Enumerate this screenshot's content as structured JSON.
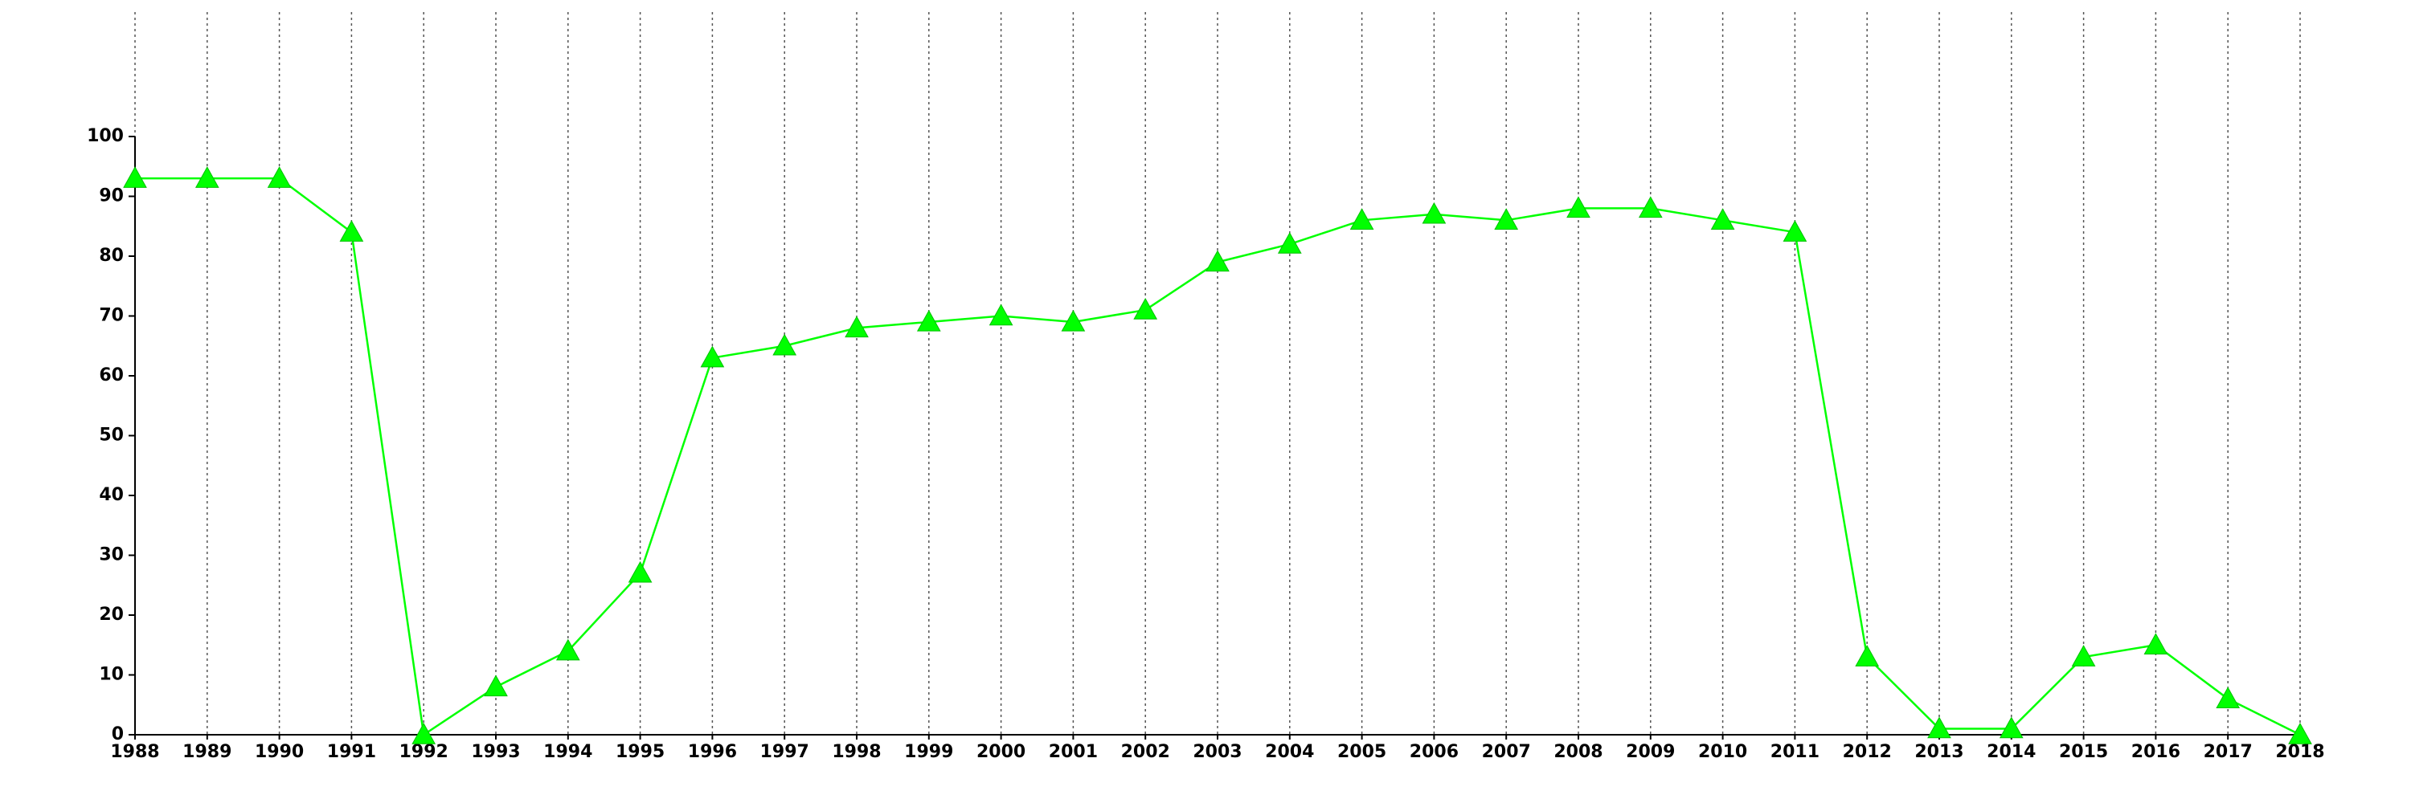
{
  "chart_data": {
    "type": "line",
    "x": [
      1988,
      1989,
      1990,
      1991,
      1992,
      1993,
      1994,
      1995,
      1996,
      1997,
      1998,
      1999,
      2000,
      2001,
      2002,
      2003,
      2004,
      2005,
      2006,
      2007,
      2008,
      2009,
      2010,
      2011,
      2012,
      2013,
      2014,
      2015,
      2016,
      2017,
      2018
    ],
    "values": [
      93,
      93,
      93,
      84,
      0,
      8,
      14,
      27,
      63,
      65,
      68,
      69,
      70,
      69,
      71,
      79,
      82,
      86,
      87,
      86,
      88,
      88,
      86,
      84,
      13,
      1,
      1,
      13,
      15,
      6,
      0
    ],
    "color": "#00ff00",
    "xlim": [
      1988,
      2018
    ],
    "xticks": [
      1988,
      1989,
      1990,
      1991,
      1992,
      1993,
      1994,
      1995,
      1996,
      1997,
      1998,
      1999,
      2000,
      2001,
      2002,
      2003,
      2004,
      2005,
      2006,
      2007,
      2008,
      2009,
      2010,
      2011,
      2012,
      2013,
      2014,
      2015,
      2016,
      2017,
      2018
    ],
    "ylim": [
      0,
      100
    ],
    "yticks": [
      0,
      10,
      20,
      30,
      40,
      50,
      60,
      70,
      80,
      90,
      100
    ],
    "grid": true
  }
}
